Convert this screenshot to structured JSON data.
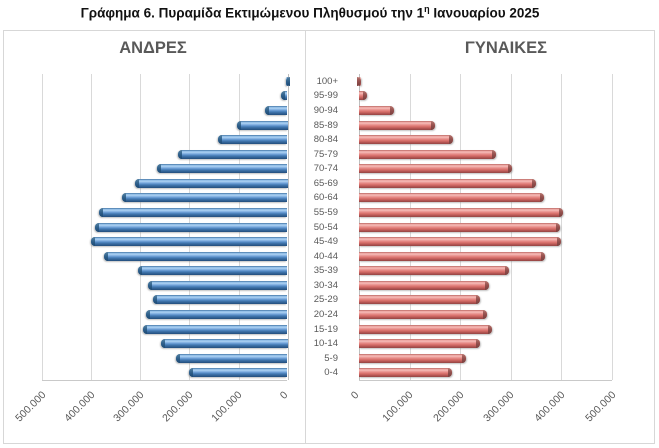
{
  "title": {
    "full": "Γράφημα 6. Πυραμίδα Εκτιμώμενου Πληθυσμού την 1η Ιανουαρίου 2025",
    "before_sup": "Γράφημα 6. Πυραμίδα Εκτιμώμενου Πληθυσμού την 1",
    "sup": "η",
    "after_sup": " Ιανουαρίου 2025"
  },
  "panels": {
    "men": {
      "title": "ΑΝΔΡΕΣ"
    },
    "women": {
      "title": "ΓΥΝΑΙΚΕΣ"
    }
  },
  "chart_data": {
    "type": "bar",
    "subtype": "population-pyramid",
    "title": "Γράφημα 6. Πυραμίδα Εκτιμώμενου Πληθυσμού την 1η Ιανουαρίου 2025",
    "categories_top_to_bottom": [
      "100+",
      "95-99",
      "90-94",
      "85-89",
      "80-84",
      "75-79",
      "70-74",
      "65-69",
      "60-64",
      "55-59",
      "50-54",
      "45-49",
      "40-44",
      "35-39",
      "30-34",
      "25-29",
      "20-24",
      "15-19",
      "10-14",
      "5-9",
      "0-4"
    ],
    "series": [
      {
        "name": "ΑΝΔΡΕΣ",
        "side": "left",
        "color_mid": "#5288c2",
        "values": [
          4000,
          14000,
          46000,
          103000,
          141000,
          223000,
          266000,
          312000,
          337000,
          384000,
          392000,
          400000,
          374000,
          305000,
          284000,
          274000,
          288000,
          295000,
          258000,
          228000,
          200000
        ]
      },
      {
        "name": "ΓΥΝΑΙΚΕΣ",
        "side": "right",
        "color_mid": "#dd7671",
        "values": [
          4000,
          15000,
          70000,
          150000,
          186000,
          270000,
          302000,
          349000,
          366000,
          404000,
          397000,
          399000,
          368000,
          296000,
          257000,
          239000,
          252000,
          262000,
          239000,
          212000,
          184000
        ]
      }
    ],
    "axis_max": 500000,
    "tick_step": 100000,
    "x_tick_labels_men": [
      "500.000",
      "400.000",
      "300.000",
      "200.000",
      "100.000",
      "0"
    ],
    "x_tick_labels_women": [
      "0",
      "100.000",
      "200.000",
      "300.000",
      "400.000",
      "500.000"
    ],
    "grid": true,
    "legend": "none"
  },
  "colors": {
    "men_bar": "#5288c2",
    "women_bar": "#dd7671",
    "gridline": "#d9d9d9",
    "panel_border": "#d7d7d7",
    "label_text": "#595959",
    "title_text": "#111111"
  }
}
